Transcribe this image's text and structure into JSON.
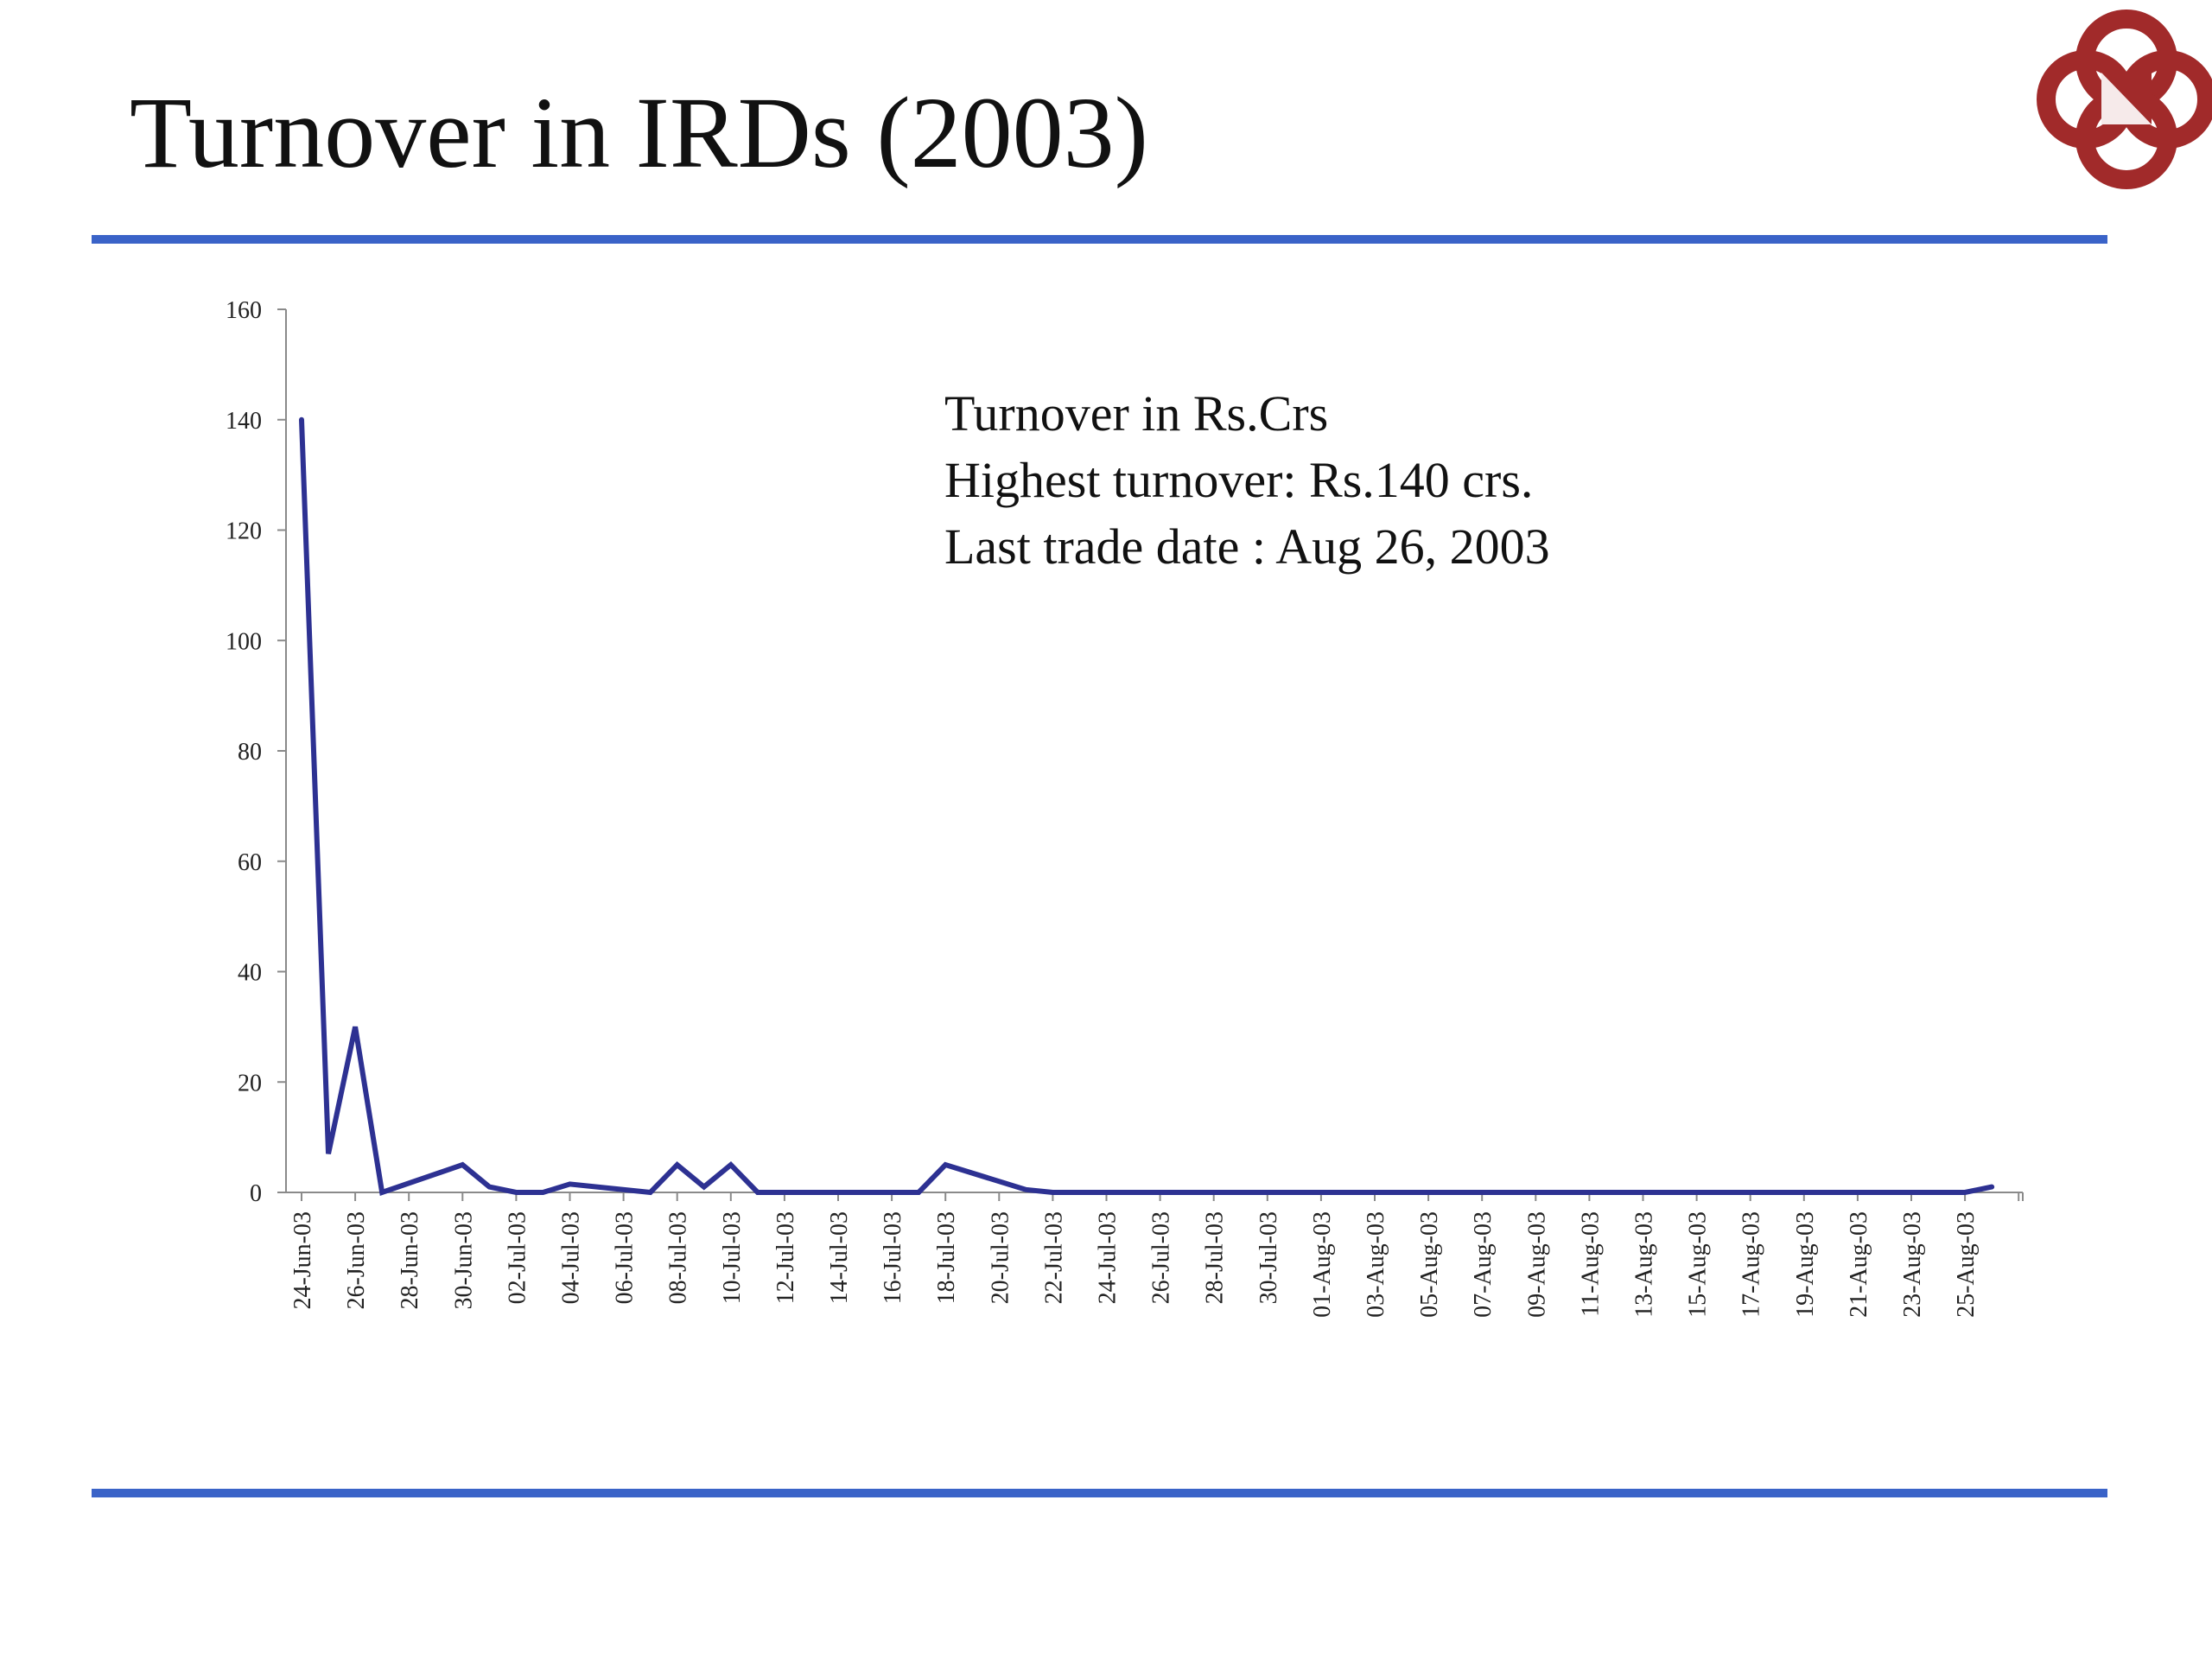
{
  "slide": {
    "title": "Turnover in IRDs (2003)",
    "rule_color": "#3a63c8",
    "logo": {
      "icon": "nse-logo",
      "color": "#a12a2a"
    }
  },
  "annotations": [
    "Turnover in Rs.Crs",
    "Highest turnover: Rs.140 crs.",
    "Last trade date : Aug 26, 2003"
  ],
  "chart_data": {
    "type": "line",
    "title": "",
    "xlabel": "",
    "ylabel": "",
    "ylim": [
      0,
      160
    ],
    "yticks": [
      0,
      20,
      40,
      60,
      80,
      100,
      120,
      140,
      160
    ],
    "grid": false,
    "legend": "none",
    "line_color": "#2d3192",
    "x_tick_labels": [
      "24-Jun-03",
      "26-Jun-03",
      "28-Jun-03",
      "30-Jun-03",
      "02-Jul-03",
      "04-Jul-03",
      "06-Jul-03",
      "08-Jul-03",
      "10-Jul-03",
      "12-Jul-03",
      "14-Jul-03",
      "16-Jul-03",
      "18-Jul-03",
      "20-Jul-03",
      "22-Jul-03",
      "24-Jul-03",
      "26-Jul-03",
      "28-Jul-03",
      "30-Jul-03",
      "01-Aug-03",
      "03-Aug-03",
      "05-Aug-03",
      "07-Aug-03",
      "09-Aug-03",
      "11-Aug-03",
      "13-Aug-03",
      "15-Aug-03",
      "17-Aug-03",
      "19-Aug-03",
      "21-Aug-03",
      "23-Aug-03",
      "25-Aug-03"
    ],
    "series": [
      {
        "x": [
          "24-Jun-03",
          "25-Jun-03",
          "26-Jun-03",
          "27-Jun-03",
          "30-Jun-03",
          "01-Jul-03",
          "02-Jul-03",
          "03-Jul-03",
          "04-Jul-03",
          "07-Jul-03",
          "08-Jul-03",
          "09-Jul-03",
          "10-Jul-03",
          "11-Jul-03",
          "17-Jul-03",
          "18-Jul-03",
          "21-Jul-03",
          "22-Jul-03",
          "25-Aug-03",
          "26-Aug-03"
        ],
        "values": [
          140,
          7,
          30,
          0,
          5,
          1,
          0,
          0,
          1.5,
          0,
          5,
          1,
          5,
          0,
          0,
          5,
          0.5,
          0,
          0,
          1
        ]
      }
    ]
  }
}
